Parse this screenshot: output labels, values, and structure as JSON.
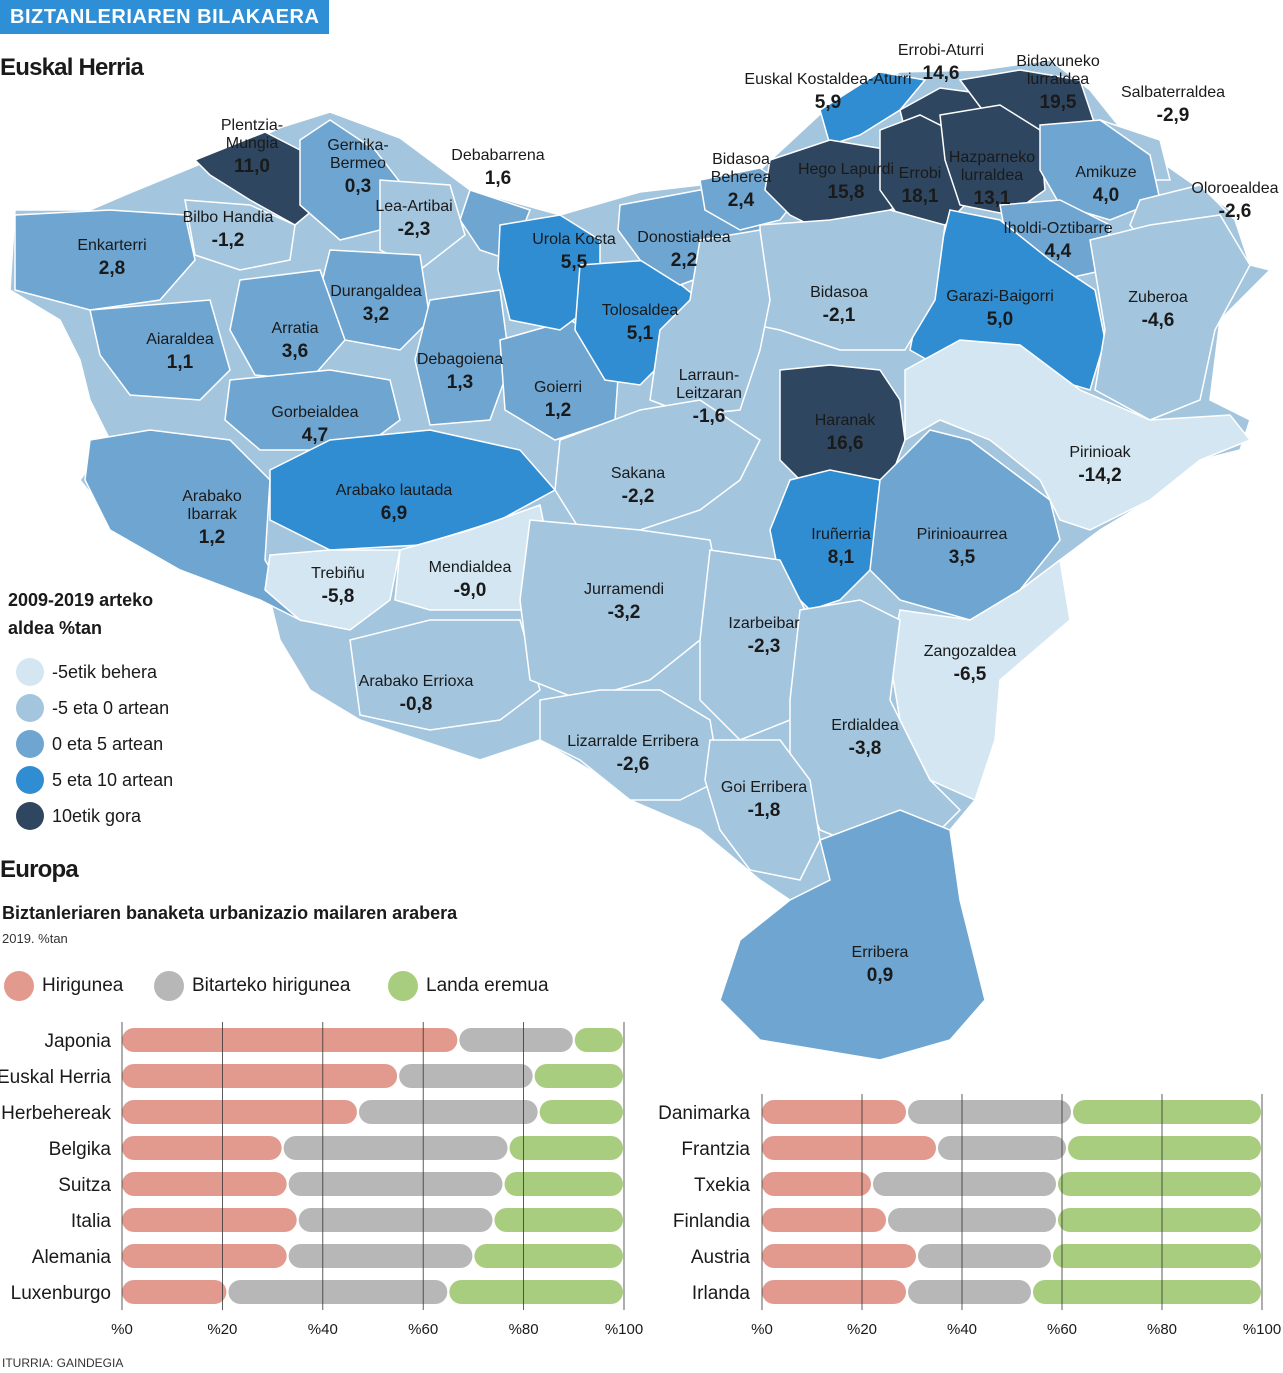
{
  "header": {
    "banner": "BIZTANLERIAREN BILAKAERA",
    "map_title": "Euskal Herria",
    "europe_title": "Europa"
  },
  "colors": {
    "lt_m5": "#d3e6f2",
    "m5_0": "#a3c5de",
    "c0_5": "#6ea5d1",
    "c5_10": "#318dd2",
    "gt10": "#2e4660"
  },
  "map_legend": {
    "title": "2009-2019 arteko aldea %tan",
    "items": [
      {
        "color": "#d3e6f2",
        "text": "-5etik behera"
      },
      {
        "color": "#a3c5de",
        "text": "-5 eta 0 artean"
      },
      {
        "color": "#6ea5d1",
        "text": "0 eta 5 artean"
      },
      {
        "color": "#318dd2",
        "text": "5 eta 10 artean"
      },
      {
        "color": "#2e4660",
        "text": "10etik gora"
      }
    ]
  },
  "map_regions": [
    {
      "name": "Plentzia-Mungia",
      "value": "11,0"
    },
    {
      "name": "Gernika-Bermeo",
      "value": "0,3"
    },
    {
      "name": "Debabarrena",
      "value": "1,6"
    },
    {
      "name": "Bilbo Handia",
      "value": "-1,2"
    },
    {
      "name": "Lea-Artibai",
      "value": "-2,3"
    },
    {
      "name": "Enkarterri",
      "value": "2,8"
    },
    {
      "name": "Durangaldea",
      "value": "3,2"
    },
    {
      "name": "Arratia",
      "value": "3,6"
    },
    {
      "name": "Aiaraldea",
      "value": "1,1"
    },
    {
      "name": "Debagoiena",
      "value": "1,3"
    },
    {
      "name": "Goierri",
      "value": "1,2"
    },
    {
      "name": "Gorbeialdea",
      "value": "4,7"
    },
    {
      "name": "Arabako lautada",
      "value": "6,9"
    },
    {
      "name": "Arabako Ibarrak",
      "value": "1,2"
    },
    {
      "name": "Trebiñu",
      "value": "-5,8"
    },
    {
      "name": "Mendialdea",
      "value": "-9,0"
    },
    {
      "name": "Arabako Errioxa",
      "value": "-0,8"
    },
    {
      "name": "Urola Kosta",
      "value": "5,5"
    },
    {
      "name": "Tolosaldea",
      "value": "5,1"
    },
    {
      "name": "Donostialdea",
      "value": "2,2"
    },
    {
      "name": "Bidasoa Beherea",
      "value": "2,4"
    },
    {
      "name": "Euskal Kostaldea-Aturri",
      "value": "5,9"
    },
    {
      "name": "Errobi-Aturri",
      "value": "14,6"
    },
    {
      "name": "Bidaxuneko lurraldea",
      "value": "19,5"
    },
    {
      "name": "Hego Lapurdi",
      "value": "15,8"
    },
    {
      "name": "Errobi",
      "value": "18,1"
    },
    {
      "name": "Hazparneko lurraldea",
      "value": "13,1"
    },
    {
      "name": "Salbaterraldea",
      "value": "-2,9"
    },
    {
      "name": "Amikuze",
      "value": "4,0"
    },
    {
      "name": "Oloroealdea",
      "value": "-2,6"
    },
    {
      "name": "Iholdi-Oztibarre",
      "value": "4,4"
    },
    {
      "name": "Garazi-Baigorri",
      "value": "5,0"
    },
    {
      "name": "Zuberoa",
      "value": "-4,6"
    },
    {
      "name": "Bidasoa",
      "value": "-2,1"
    },
    {
      "name": "Larraun-Leitzaran",
      "value": "-1,6"
    },
    {
      "name": "Haranak",
      "value": "16,6"
    },
    {
      "name": "Pirinioak",
      "value": "-14,2"
    },
    {
      "name": "Sakana",
      "value": "-2,2"
    },
    {
      "name": "Iruñerria",
      "value": "8,1"
    },
    {
      "name": "Pirinioaurrea",
      "value": "3,5"
    },
    {
      "name": "Jurramendi",
      "value": "-3,2"
    },
    {
      "name": "Izarbeibar",
      "value": "-2,3"
    },
    {
      "name": "Zangozaldea",
      "value": "-6,5"
    },
    {
      "name": "Erdialdea",
      "value": "-3,8"
    },
    {
      "name": "Lizarralde Erribera",
      "value": "-2,6"
    },
    {
      "name": "Goi Erribera",
      "value": "-1,8"
    },
    {
      "name": "Erribera",
      "value": "0,9"
    }
  ],
  "chart_data": {
    "type": "bar",
    "stacked": true,
    "orientation": "horizontal",
    "title": "Biztanleriaren banaketa urbanizazio mailaren arabera",
    "subtitle": "2019. %tan",
    "xlim": [
      0,
      100
    ],
    "ticks": [
      "%0",
      "%20",
      "%40",
      "%60",
      "%80",
      "%100"
    ],
    "legend": [
      {
        "name": "Hirigunea",
        "color": "#e39a8e"
      },
      {
        "name": "Bitarteko hirigunea",
        "color": "#b7b7b7"
      },
      {
        "name": "Landa eremua",
        "color": "#a9cd7e"
      }
    ],
    "groups": [
      {
        "categories": [
          "Japonia",
          "Euskal Herria",
          "Herbehereak",
          "Belgika",
          "Suitza",
          "Italia",
          "Alemania",
          "Luxenburgo"
        ],
        "series": [
          {
            "name": "Hirigunea",
            "values": [
              67,
              55,
              47,
              32,
              33,
              35,
              33,
              21
            ]
          },
          {
            "name": "Bitarteko hirigunea",
            "values": [
              23,
              27,
              36,
              45,
              43,
              39,
              37,
              44
            ]
          },
          {
            "name": "Landa eremua",
            "values": [
              10,
              18,
              17,
              23,
              24,
              26,
              30,
              35
            ]
          }
        ]
      },
      {
        "categories": [
          "Danimarka",
          "Frantzia",
          "Txekia",
          "Finlandia",
          "Austria",
          "Irlanda"
        ],
        "series": [
          {
            "name": "Hirigunea",
            "values": [
              29,
              35,
              22,
              25,
              31,
              29
            ]
          },
          {
            "name": "Bitarteko hirigunea",
            "values": [
              33,
              26,
              37,
              34,
              27,
              25
            ]
          },
          {
            "name": "Landa eremua",
            "values": [
              38,
              39,
              41,
              41,
              42,
              46
            ]
          }
        ]
      }
    ]
  },
  "source": "ITURRIA: GAINDEGIA"
}
